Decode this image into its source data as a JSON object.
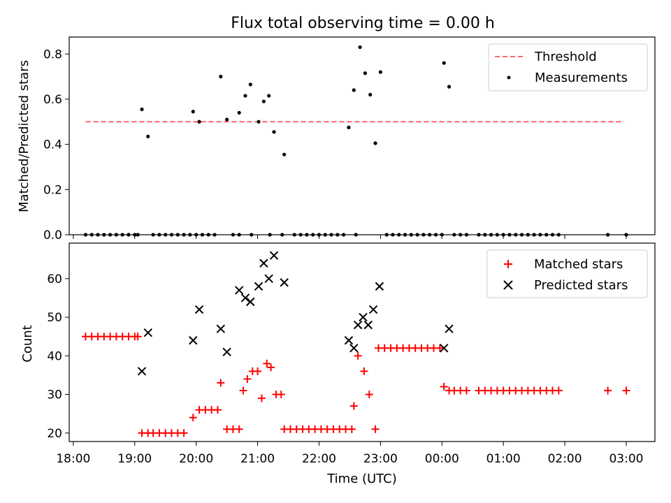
{
  "figure": {
    "title": "Flux total observing time = 0.00 h",
    "xlabel": "Time (UTC)"
  },
  "chart_data": [
    {
      "type": "scatter",
      "ylabel": "Matched/Predicted stars",
      "ylim": [
        0,
        0.875
      ],
      "yticks": [
        0.0,
        0.2,
        0.4,
        0.6,
        0.8
      ],
      "ytick_labels": [
        "0.0",
        "0.2",
        "0.4",
        "0.6",
        "0.8"
      ],
      "legend_position": "upper right",
      "threshold": {
        "name": "Threshold",
        "value": 0.5,
        "x_start": "18:12",
        "x_end": "02:58",
        "color": "#ff6666",
        "style": "dashed"
      },
      "series": [
        {
          "name": "Measurements",
          "color": "#000000",
          "marker": "dot",
          "points": [
            [
              "18:12",
              0
            ],
            [
              "18:18",
              0
            ],
            [
              "18:24",
              0
            ],
            [
              "18:30",
              0
            ],
            [
              "18:36",
              0
            ],
            [
              "18:42",
              0
            ],
            [
              "18:48",
              0
            ],
            [
              "18:54",
              0
            ],
            [
              "19:00",
              0
            ],
            [
              "19:03",
              0
            ],
            [
              "19:07",
              0.555
            ],
            [
              "19:13",
              0.435
            ],
            [
              "19:18",
              0
            ],
            [
              "19:24",
              0
            ],
            [
              "19:30",
              0
            ],
            [
              "19:36",
              0
            ],
            [
              "19:42",
              0
            ],
            [
              "19:48",
              0
            ],
            [
              "19:54",
              0
            ],
            [
              "20:00",
              0
            ],
            [
              "19:57",
              0.545
            ],
            [
              "20:03",
              0.5
            ],
            [
              "20:06",
              0
            ],
            [
              "20:12",
              0
            ],
            [
              "20:18",
              0
            ],
            [
              "20:36",
              0
            ],
            [
              "20:42",
              0
            ],
            [
              "20:54",
              0
            ],
            [
              "20:24",
              0.7
            ],
            [
              "20:30",
              0.51
            ],
            [
              "20:42",
              0.54
            ],
            [
              "20:48",
              0.615
            ],
            [
              "20:53",
              0.665
            ],
            [
              "21:01",
              0.5
            ],
            [
              "21:06",
              0.59
            ],
            [
              "21:11",
              0.615
            ],
            [
              "21:16",
              0.455
            ],
            [
              "21:26",
              0.355
            ],
            [
              "21:12",
              0
            ],
            [
              "21:24",
              0
            ],
            [
              "21:36",
              0
            ],
            [
              "21:42",
              0
            ],
            [
              "21:48",
              0
            ],
            [
              "21:54",
              0
            ],
            [
              "22:00",
              0
            ],
            [
              "22:06",
              0
            ],
            [
              "22:12",
              0
            ],
            [
              "22:18",
              0
            ],
            [
              "22:24",
              0
            ],
            [
              "22:29",
              0.475
            ],
            [
              "22:34",
              0.64
            ],
            [
              "22:40",
              0.83
            ],
            [
              "22:45",
              0.715
            ],
            [
              "22:50",
              0.62
            ],
            [
              "22:55",
              0.405
            ],
            [
              "23:00",
              0.72
            ],
            [
              "22:36",
              0
            ],
            [
              "23:06",
              0
            ],
            [
              "23:12",
              0
            ],
            [
              "23:18",
              0
            ],
            [
              "23:24",
              0
            ],
            [
              "23:30",
              0
            ],
            [
              "23:36",
              0
            ],
            [
              "23:42",
              0
            ],
            [
              "23:48",
              0
            ],
            [
              "23:54",
              0
            ],
            [
              "00:00",
              0
            ],
            [
              "00:02",
              0.76
            ],
            [
              "00:07",
              0.655
            ],
            [
              "00:12",
              0
            ],
            [
              "00:18",
              0
            ],
            [
              "00:24",
              0
            ],
            [
              "00:36",
              0
            ],
            [
              "00:42",
              0
            ],
            [
              "00:48",
              0
            ],
            [
              "00:54",
              0
            ],
            [
              "01:00",
              0
            ],
            [
              "01:06",
              0
            ],
            [
              "01:12",
              0
            ],
            [
              "01:18",
              0
            ],
            [
              "01:24",
              0
            ],
            [
              "01:30",
              0
            ],
            [
              "01:36",
              0
            ],
            [
              "01:42",
              0
            ],
            [
              "01:48",
              0
            ],
            [
              "01:54",
              0
            ],
            [
              "02:42",
              0
            ],
            [
              "03:00",
              0
            ]
          ]
        }
      ]
    },
    {
      "type": "scatter",
      "ylabel": "Count",
      "ylim": [
        17.8,
        69.2
      ],
      "yticks": [
        20,
        30,
        40,
        50,
        60
      ],
      "ytick_labels": [
        "20",
        "30",
        "40",
        "50",
        "60"
      ],
      "legend_position": "upper right",
      "xlim": [
        "17:56",
        "03:28"
      ],
      "xticks": [
        "18:00",
        "19:00",
        "20:00",
        "21:00",
        "22:00",
        "23:00",
        "00:00",
        "01:00",
        "02:00",
        "03:00"
      ],
      "xtick_labels": [
        "18:00",
        "19:00",
        "20:00",
        "21:00",
        "22:00",
        "23:00",
        "00:00",
        "01:00",
        "02:00",
        "03:00"
      ],
      "series": [
        {
          "name": "Matched stars",
          "color": "#ff0000",
          "marker": "plus",
          "points": [
            [
              "18:12",
              45
            ],
            [
              "18:18",
              45
            ],
            [
              "18:24",
              45
            ],
            [
              "18:30",
              45
            ],
            [
              "18:36",
              45
            ],
            [
              "18:42",
              45
            ],
            [
              "18:48",
              45
            ],
            [
              "18:54",
              45
            ],
            [
              "19:00",
              45
            ],
            [
              "19:03",
              45
            ],
            [
              "19:07",
              20
            ],
            [
              "19:13",
              20
            ],
            [
              "19:18",
              20
            ],
            [
              "19:24",
              20
            ],
            [
              "19:30",
              20
            ],
            [
              "19:36",
              20
            ],
            [
              "19:42",
              20
            ],
            [
              "19:48",
              20
            ],
            [
              "19:57",
              24
            ],
            [
              "20:03",
              26
            ],
            [
              "20:09",
              26
            ],
            [
              "20:15",
              26
            ],
            [
              "20:21",
              26
            ],
            [
              "20:24",
              33
            ],
            [
              "20:30",
              21
            ],
            [
              "20:36",
              21
            ],
            [
              "20:42",
              21
            ],
            [
              "20:46",
              31
            ],
            [
              "20:50",
              34
            ],
            [
              "20:55",
              36
            ],
            [
              "21:00",
              36
            ],
            [
              "21:04",
              29
            ],
            [
              "21:09",
              38
            ],
            [
              "21:13",
              37
            ],
            [
              "21:18",
              30
            ],
            [
              "21:23",
              30
            ],
            [
              "21:26",
              21
            ],
            [
              "21:32",
              21
            ],
            [
              "21:38",
              21
            ],
            [
              "21:44",
              21
            ],
            [
              "21:50",
              21
            ],
            [
              "21:56",
              21
            ],
            [
              "22:02",
              21
            ],
            [
              "22:08",
              21
            ],
            [
              "22:14",
              21
            ],
            [
              "22:20",
              21
            ],
            [
              "22:26",
              21
            ],
            [
              "22:32",
              21
            ],
            [
              "22:34",
              27
            ],
            [
              "22:38",
              40
            ],
            [
              "22:44",
              36
            ],
            [
              "22:49",
              30
            ],
            [
              "22:55",
              21
            ],
            [
              "22:58",
              42
            ],
            [
              "23:04",
              42
            ],
            [
              "23:10",
              42
            ],
            [
              "23:16",
              42
            ],
            [
              "23:22",
              42
            ],
            [
              "23:28",
              42
            ],
            [
              "23:34",
              42
            ],
            [
              "23:40",
              42
            ],
            [
              "23:46",
              42
            ],
            [
              "23:52",
              42
            ],
            [
              "23:58",
              42
            ],
            [
              "00:02",
              32
            ],
            [
              "00:07",
              31
            ],
            [
              "00:12",
              31
            ],
            [
              "00:18",
              31
            ],
            [
              "00:24",
              31
            ],
            [
              "00:36",
              31
            ],
            [
              "00:42",
              31
            ],
            [
              "00:48",
              31
            ],
            [
              "00:54",
              31
            ],
            [
              "01:00",
              31
            ],
            [
              "01:06",
              31
            ],
            [
              "01:12",
              31
            ],
            [
              "01:18",
              31
            ],
            [
              "01:24",
              31
            ],
            [
              "01:30",
              31
            ],
            [
              "01:36",
              31
            ],
            [
              "01:42",
              31
            ],
            [
              "01:48",
              31
            ],
            [
              "01:54",
              31
            ],
            [
              "02:42",
              31
            ],
            [
              "03:00",
              31
            ]
          ]
        },
        {
          "name": "Predicted stars",
          "color": "#000000",
          "marker": "x",
          "points": [
            [
              "19:07",
              36
            ],
            [
              "19:13",
              46
            ],
            [
              "19:57",
              44
            ],
            [
              "20:03",
              52
            ],
            [
              "20:24",
              47
            ],
            [
              "20:30",
              41
            ],
            [
              "20:42",
              57
            ],
            [
              "20:48",
              55
            ],
            [
              "20:53",
              54
            ],
            [
              "21:01",
              58
            ],
            [
              "21:06",
              64
            ],
            [
              "21:11",
              60
            ],
            [
              "21:16",
              66
            ],
            [
              "21:26",
              59
            ],
            [
              "22:29",
              44
            ],
            [
              "22:34",
              42
            ],
            [
              "22:38",
              48
            ],
            [
              "22:43",
              50
            ],
            [
              "22:48",
              48
            ],
            [
              "22:53",
              52
            ],
            [
              "22:59",
              58
            ],
            [
              "00:02",
              42
            ],
            [
              "00:07",
              47
            ]
          ]
        }
      ]
    }
  ]
}
